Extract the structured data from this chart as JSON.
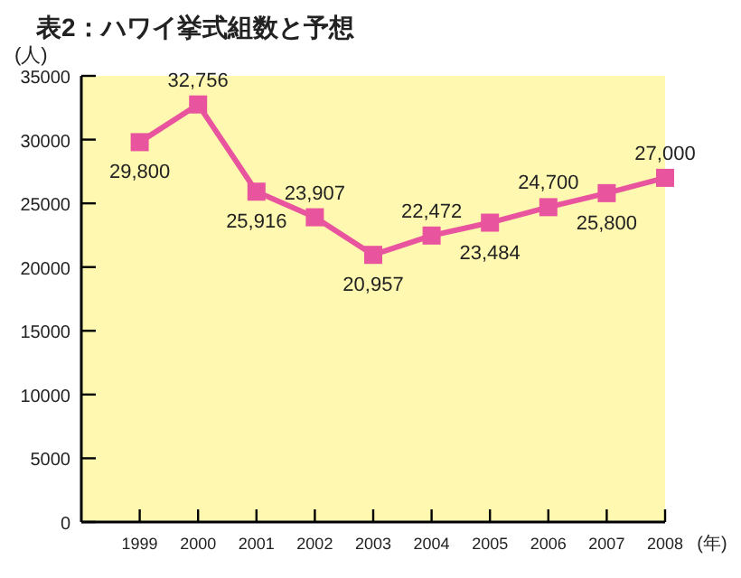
{
  "chart_data": {
    "type": "line",
    "title": "表2：ハワイ挙式組数と予想",
    "ylabel": "(人)",
    "xlabel": "(年)",
    "x": [
      1999,
      2000,
      2001,
      2002,
      2003,
      2004,
      2005,
      2006,
      2007,
      2008
    ],
    "series": [
      {
        "color": "#e8559e",
        "values": [
          29800,
          32756,
          25916,
          23907,
          20957,
          22472,
          23484,
          24700,
          25800,
          27000
        ],
        "value_labels": [
          "29,800",
          "32,756",
          "25,916",
          "23,907",
          "20,957",
          "22,472",
          "23,484",
          "24,700",
          "25,800",
          "27,000"
        ]
      }
    ],
    "xlim": [
      1998,
      2008
    ],
    "xticks": [
      1999,
      2000,
      2001,
      2002,
      2003,
      2004,
      2005,
      2006,
      2007,
      2008
    ],
    "ylim": [
      0,
      35000
    ],
    "yticks": [
      0,
      5000,
      10000,
      15000,
      20000,
      25000,
      30000,
      35000
    ],
    "marker": "square",
    "grid": false
  }
}
